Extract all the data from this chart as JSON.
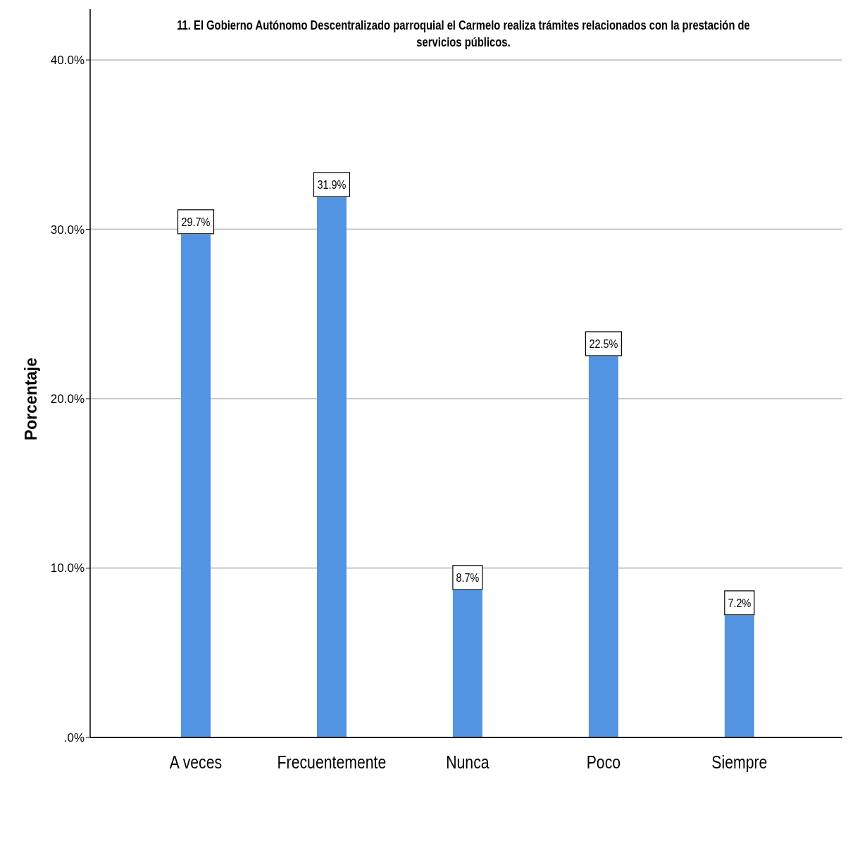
{
  "chart_data": {
    "type": "bar",
    "title": "11.   El Gobierno Autónomo Descentralizado parroquial el Carmelo realiza trámites relacionados con la prestación de servicios públicos.",
    "ylabel": "Porcentaje",
    "categories": [
      "A veces",
      "Frecuentemente",
      "Nunca",
      "Poco",
      "Siempre"
    ],
    "values": [
      29.7,
      31.9,
      8.7,
      22.5,
      7.2
    ],
    "value_labels": [
      "29.7%",
      "31.9%",
      "8.7%",
      "22.5%",
      "7.2%"
    ],
    "color": "#5294e2",
    "ylim": [
      0,
      43
    ],
    "yticks": [
      {
        "value": 0,
        "label": ".0%"
      },
      {
        "value": 10,
        "label": "10.0%"
      },
      {
        "value": 20,
        "label": "20.0%"
      },
      {
        "value": 30,
        "label": "30.0%"
      },
      {
        "value": 40,
        "label": "40.0%"
      }
    ],
    "grid": "y"
  }
}
